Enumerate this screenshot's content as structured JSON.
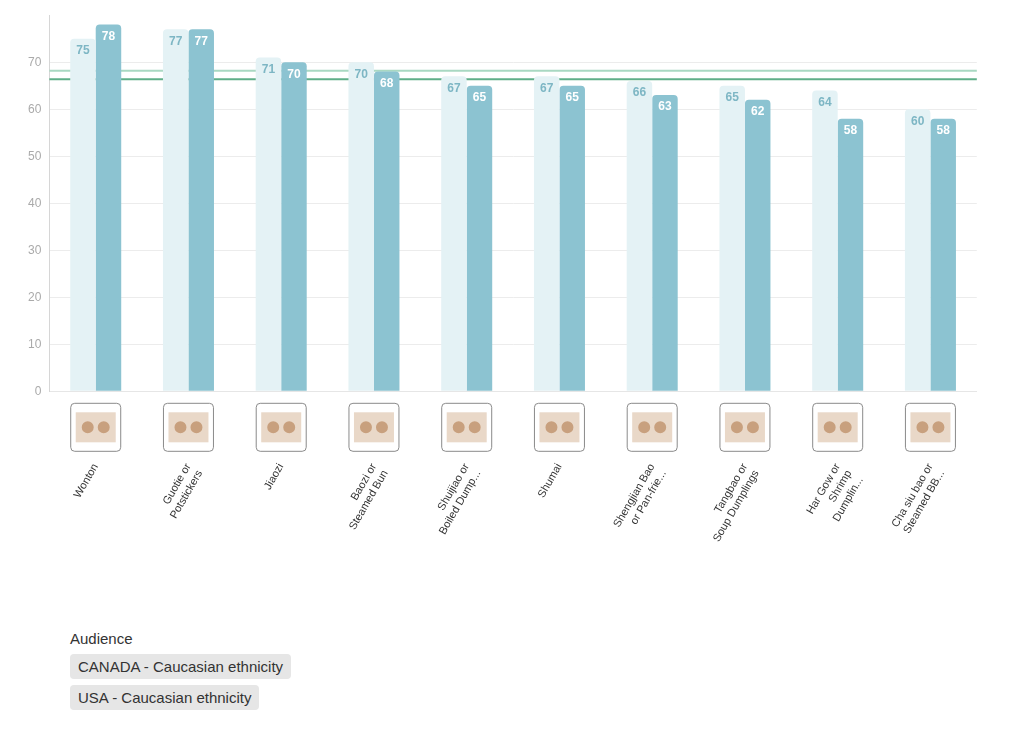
{
  "chart_data": {
    "type": "bar",
    "categories": [
      "Wonton",
      "Guotie or Potstickers",
      "Jiaozi",
      "Baozi or Steamed Bun",
      "Shuijiao or Boiled Dump...",
      "Shumai",
      "Shengjian Bao or Pan-frie...",
      "Tangbao or Soup Dumplings",
      "Har Gow or Shrimp Dumplin...",
      "Cha siu bao or Steamed BB..."
    ],
    "series": [
      {
        "name": "CANADA - Caucasian ethnicity",
        "color": "#e4f2f5",
        "values": [
          75,
          77,
          71,
          70,
          67,
          67,
          66,
          65,
          64,
          60
        ],
        "average": 68.2
      },
      {
        "name": "USA - Caucasian ethnicity",
        "color": "#8cc3d1",
        "values": [
          78,
          77,
          70,
          68,
          65,
          65,
          63,
          62,
          58,
          58
        ],
        "average": 66.4
      }
    ],
    "ylim": [
      0,
      80
    ],
    "yticks": [
      0,
      10,
      20,
      30,
      40,
      50,
      60,
      70
    ],
    "grid": true,
    "data_labels": true,
    "legend": "bottom",
    "legend_title": "Audience"
  }
}
